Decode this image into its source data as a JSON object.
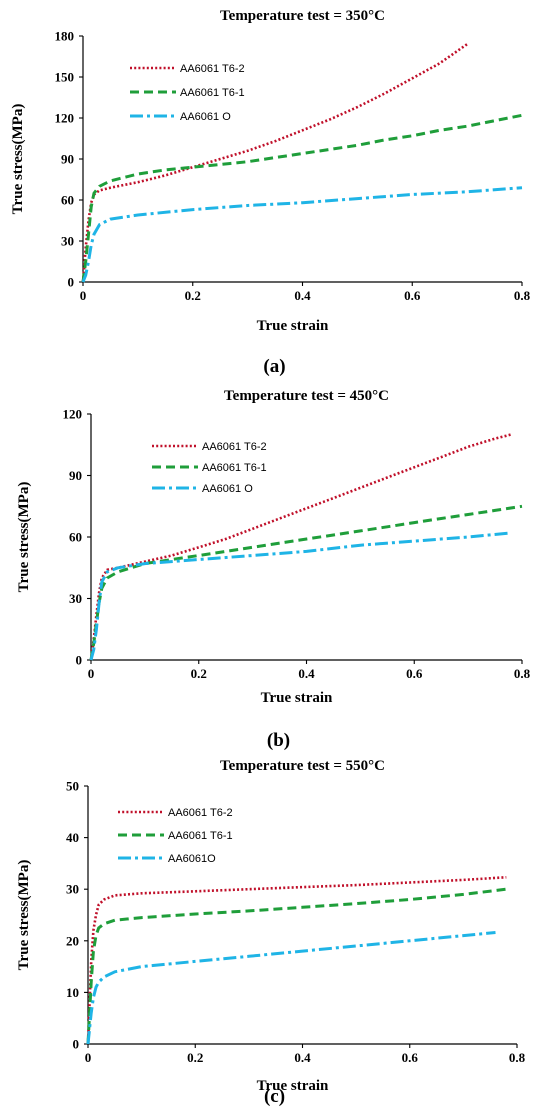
{
  "chart_data": [
    {
      "type": "line",
      "title": "Temperature test = 350°C",
      "xlabel": "True strain",
      "ylabel": "True stress(MPa)",
      "xlim": [
        0,
        0.8
      ],
      "ylim": [
        0,
        180
      ],
      "xticks": [
        "0",
        "0.2",
        "0.4",
        "0.6",
        "0.8"
      ],
      "yticks": [
        "0",
        "30",
        "60",
        "90",
        "120",
        "150",
        "180"
      ],
      "panel_label": "(a)",
      "legend_position": "top-left",
      "grid": false,
      "series": [
        {
          "name": "AA6061 T6-2",
          "color": "#c0102a",
          "style": "dotted",
          "points": [
            [
              0,
              0
            ],
            [
              0.005,
              25
            ],
            [
              0.01,
              45
            ],
            [
              0.015,
              58
            ],
            [
              0.02,
              64
            ],
            [
              0.03,
              67
            ],
            [
              0.05,
              69
            ],
            [
              0.1,
              73
            ],
            [
              0.15,
              78
            ],
            [
              0.2,
              84
            ],
            [
              0.25,
              90
            ],
            [
              0.3,
              96
            ],
            [
              0.35,
              103
            ],
            [
              0.4,
              111
            ],
            [
              0.45,
              119
            ],
            [
              0.5,
              128
            ],
            [
              0.55,
              138
            ],
            [
              0.6,
              149
            ],
            [
              0.65,
              160
            ],
            [
              0.7,
              174
            ]
          ]
        },
        {
          "name": "AA6061 T6-1",
          "color": "#1f9e3a",
          "style": "dashed",
          "points": [
            [
              0,
              0
            ],
            [
              0.005,
              15
            ],
            [
              0.01,
              35
            ],
            [
              0.015,
              55
            ],
            [
              0.02,
              65
            ],
            [
              0.03,
              70
            ],
            [
              0.05,
              74
            ],
            [
              0.1,
              79
            ],
            [
              0.15,
              82
            ],
            [
              0.2,
              84
            ],
            [
              0.25,
              86
            ],
            [
              0.3,
              88
            ],
            [
              0.35,
              91
            ],
            [
              0.4,
              94
            ],
            [
              0.45,
              97
            ],
            [
              0.5,
              100
            ],
            [
              0.55,
              104
            ],
            [
              0.6,
              107
            ],
            [
              0.65,
              111
            ],
            [
              0.7,
              114
            ],
            [
              0.75,
              118
            ],
            [
              0.8,
              122
            ]
          ]
        },
        {
          "name": "AA6061 O",
          "color": "#1fb4e6",
          "style": "dashdot",
          "points": [
            [
              0,
              0
            ],
            [
              0.005,
              5
            ],
            [
              0.01,
              15
            ],
            [
              0.015,
              27
            ],
            [
              0.02,
              35
            ],
            [
              0.03,
              42
            ],
            [
              0.05,
              46
            ],
            [
              0.1,
              49
            ],
            [
              0.2,
              53
            ],
            [
              0.3,
              56
            ],
            [
              0.4,
              58
            ],
            [
              0.5,
              61
            ],
            [
              0.6,
              64
            ],
            [
              0.7,
              66
            ],
            [
              0.8,
              69
            ]
          ]
        }
      ]
    },
    {
      "type": "line",
      "title": "Temperature test = 450°C",
      "xlabel": "True strain",
      "ylabel": "True stress(MPa)",
      "xlim": [
        0,
        0.8
      ],
      "ylim": [
        0,
        120
      ],
      "xticks": [
        "0",
        "0.2",
        "0.4",
        "0.6",
        "0.8"
      ],
      "yticks": [
        "0",
        "30",
        "60",
        "90",
        "120"
      ],
      "panel_label": "(b)",
      "legend_position": "top-left",
      "grid": false,
      "series": [
        {
          "name": "AA6061 T6-2",
          "color": "#c0102a",
          "style": "dotted",
          "points": [
            [
              0,
              0
            ],
            [
              0.005,
              10
            ],
            [
              0.01,
              22
            ],
            [
              0.015,
              33
            ],
            [
              0.02,
              40
            ],
            [
              0.03,
              44
            ],
            [
              0.05,
              45
            ],
            [
              0.1,
              48
            ],
            [
              0.15,
              51
            ],
            [
              0.2,
              55
            ],
            [
              0.25,
              59
            ],
            [
              0.3,
              64
            ],
            [
              0.35,
              69
            ],
            [
              0.4,
              74
            ],
            [
              0.45,
              79
            ],
            [
              0.5,
              84
            ],
            [
              0.55,
              89
            ],
            [
              0.6,
              94
            ],
            [
              0.65,
              99
            ],
            [
              0.7,
              104
            ],
            [
              0.75,
              108
            ],
            [
              0.78,
              110
            ]
          ]
        },
        {
          "name": "AA6061 T6-1",
          "color": "#1f9e3a",
          "style": "dashed",
          "points": [
            [
              0,
              0
            ],
            [
              0.005,
              8
            ],
            [
              0.01,
              18
            ],
            [
              0.015,
              28
            ],
            [
              0.02,
              35
            ],
            [
              0.03,
              40
            ],
            [
              0.05,
              43
            ],
            [
              0.1,
              47
            ],
            [
              0.15,
              49
            ],
            [
              0.2,
              51
            ],
            [
              0.25,
              53
            ],
            [
              0.3,
              55
            ],
            [
              0.35,
              57
            ],
            [
              0.4,
              59
            ],
            [
              0.45,
              61
            ],
            [
              0.5,
              63
            ],
            [
              0.55,
              65
            ],
            [
              0.6,
              67
            ],
            [
              0.65,
              69
            ],
            [
              0.7,
              71
            ],
            [
              0.75,
              73
            ],
            [
              0.8,
              75
            ]
          ]
        },
        {
          "name": "AA6061 O",
          "color": "#1fb4e6",
          "style": "dashdot",
          "points": [
            [
              0,
              0
            ],
            [
              0.005,
              5
            ],
            [
              0.01,
              15
            ],
            [
              0.015,
              28
            ],
            [
              0.02,
              38
            ],
            [
              0.03,
              43
            ],
            [
              0.05,
              45
            ],
            [
              0.1,
              47
            ],
            [
              0.2,
              49
            ],
            [
              0.3,
              51
            ],
            [
              0.4,
              53
            ],
            [
              0.5,
              56
            ],
            [
              0.6,
              58
            ],
            [
              0.7,
              60
            ],
            [
              0.78,
              62
            ]
          ]
        }
      ]
    },
    {
      "type": "line",
      "title": "Temperature test = 550°C",
      "xlabel": "True strain",
      "ylabel": "True stress(MPa)",
      "xlim": [
        0,
        0.8
      ],
      "ylim": [
        0,
        50
      ],
      "xticks": [
        "0",
        "0.2",
        "0.4",
        "0.6",
        "0.8"
      ],
      "yticks": [
        "0",
        "10",
        "20",
        "30",
        "40",
        "50"
      ],
      "panel_label": "(c)",
      "legend_position": "top-left",
      "grid": false,
      "series": [
        {
          "name": "AA6061 T6-2",
          "color": "#c0102a",
          "style": "dotted",
          "points": [
            [
              0,
              0
            ],
            [
              0.003,
              8
            ],
            [
              0.006,
              16
            ],
            [
              0.01,
              22
            ],
            [
              0.015,
              25
            ],
            [
              0.02,
              27
            ],
            [
              0.03,
              28
            ],
            [
              0.05,
              28.8
            ],
            [
              0.1,
              29.2
            ],
            [
              0.2,
              29.6
            ],
            [
              0.3,
              30
            ],
            [
              0.4,
              30.4
            ],
            [
              0.5,
              30.8
            ],
            [
              0.6,
              31.3
            ],
            [
              0.7,
              31.8
            ],
            [
              0.78,
              32.3
            ]
          ]
        },
        {
          "name": "AA6061 T6-1",
          "color": "#1f9e3a",
          "style": "dashed",
          "points": [
            [
              0,
              0
            ],
            [
              0.003,
              6
            ],
            [
              0.006,
              12
            ],
            [
              0.01,
              18
            ],
            [
              0.015,
              21
            ],
            [
              0.02,
              22.5
            ],
            [
              0.03,
              23.3
            ],
            [
              0.05,
              24
            ],
            [
              0.1,
              24.5
            ],
            [
              0.2,
              25.2
            ],
            [
              0.3,
              25.8
            ],
            [
              0.4,
              26.5
            ],
            [
              0.5,
              27.2
            ],
            [
              0.6,
              28
            ],
            [
              0.7,
              29
            ],
            [
              0.78,
              30
            ]
          ]
        },
        {
          "name": "AA6061O",
          "color": "#1fb4e6",
          "style": "dashdot",
          "points": [
            [
              0,
              0
            ],
            [
              0.003,
              3
            ],
            [
              0.006,
              6
            ],
            [
              0.01,
              9
            ],
            [
              0.015,
              11
            ],
            [
              0.02,
              12
            ],
            [
              0.03,
              13
            ],
            [
              0.05,
              14
            ],
            [
              0.1,
              15
            ],
            [
              0.2,
              16
            ],
            [
              0.3,
              17
            ],
            [
              0.4,
              18
            ],
            [
              0.5,
              19
            ],
            [
              0.6,
              20
            ],
            [
              0.7,
              21
            ],
            [
              0.76,
              21.6
            ]
          ]
        }
      ]
    }
  ]
}
